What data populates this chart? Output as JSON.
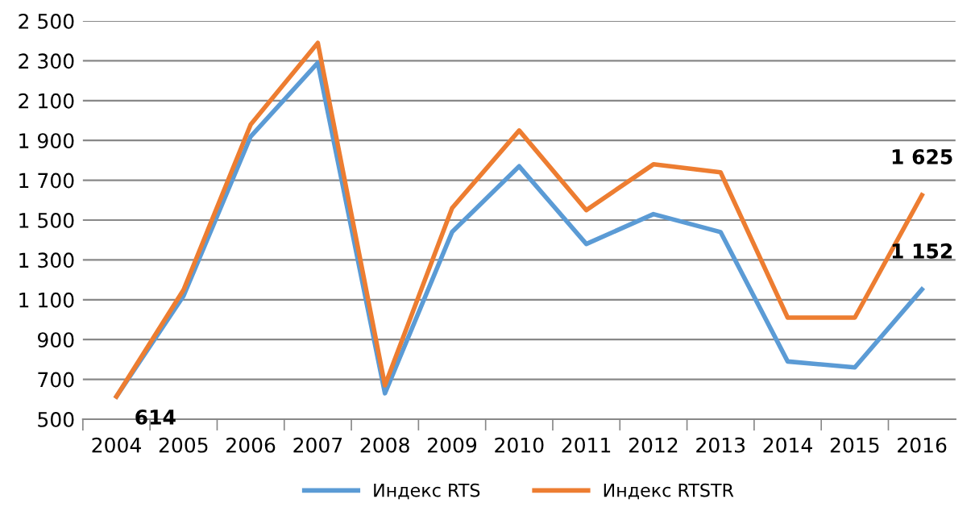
{
  "chart_data": {
    "type": "line",
    "categories": [
      "2004",
      "2005",
      "2006",
      "2007",
      "2008",
      "2009",
      "2010",
      "2011",
      "2012",
      "2013",
      "2014",
      "2015",
      "2016"
    ],
    "series": [
      {
        "name": "Индекс RTS",
        "color": "#5b9bd5",
        "values": [
          614,
          1120,
          1920,
          2290,
          630,
          1440,
          1770,
          1380,
          1530,
          1440,
          790,
          760,
          1152
        ],
        "value_labels": [
          "614",
          null,
          null,
          null,
          null,
          null,
          null,
          null,
          null,
          null,
          null,
          null,
          "1 152"
        ]
      },
      {
        "name": "Индекс RTSTR",
        "color": "#ed7d31",
        "values": [
          614,
          1150,
          1980,
          2390,
          670,
          1560,
          1950,
          1550,
          1780,
          1740,
          1010,
          1010,
          1625
        ],
        "value_labels": [
          null,
          null,
          null,
          null,
          null,
          null,
          null,
          null,
          null,
          null,
          null,
          null,
          "1 625"
        ]
      }
    ],
    "ylim": [
      500,
      2500
    ],
    "yticks": [
      500,
      700,
      900,
      {
        "value": 1100,
        "label": "1 100"
      },
      {
        "value": 1300,
        "label": "1 300"
      },
      {
        "value": 1500,
        "label": "1 500"
      },
      {
        "value": 1700,
        "label": "1 700"
      },
      {
        "value": 1900,
        "label": "1 900"
      },
      {
        "value": 2100,
        "label": "2 100"
      },
      {
        "value": 2300,
        "label": "2 300"
      },
      {
        "value": 2500,
        "label": "2 500"
      }
    ],
    "grid": "y",
    "legend": "bottom",
    "marker": "none",
    "line_style": "solid"
  }
}
